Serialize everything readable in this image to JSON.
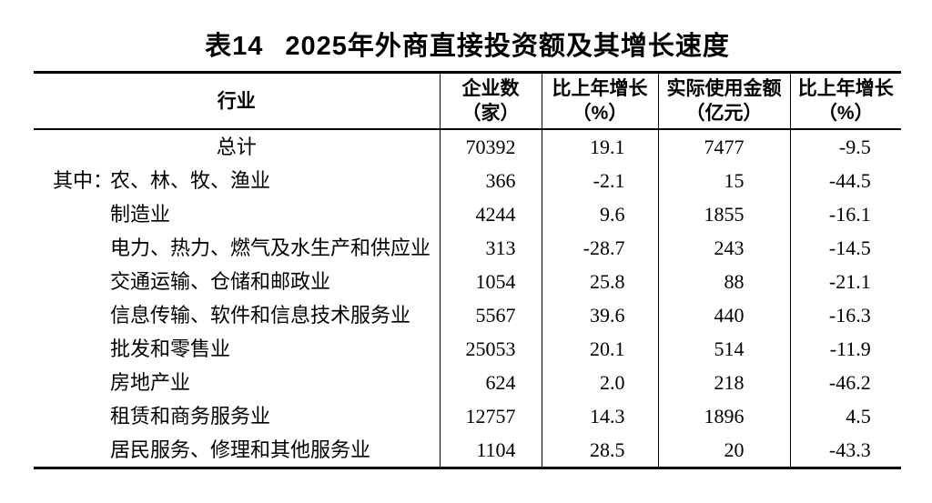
{
  "table": {
    "number": "表14",
    "title": "2025年外商直接投资额及其增长速度",
    "columns": [
      {
        "label": "行业",
        "sub": ""
      },
      {
        "label": "企业数",
        "sub": "（家）"
      },
      {
        "label": "比上年增长",
        "sub": "（%）"
      },
      {
        "label": "实际使用金额",
        "sub": "（亿元）"
      },
      {
        "label": "比上年增长",
        "sub": "（%）"
      }
    ],
    "rows": [
      {
        "prefix": "",
        "industry": "总计",
        "center": true,
        "enterprises": "70392",
        "enterprises_growth": "19.1",
        "amount": "7477",
        "amount_growth": "-9.5"
      },
      {
        "prefix": "其中：",
        "industry": "农、林、牧、渔业",
        "enterprises": "366",
        "enterprises_growth": "-2.1",
        "amount": "15",
        "amount_growth": "-44.5"
      },
      {
        "prefix": "",
        "industry": "制造业",
        "enterprises": "4244",
        "enterprises_growth": "9.6",
        "amount": "1855",
        "amount_growth": "-16.1"
      },
      {
        "prefix": "",
        "industry": "电力、热力、燃气及水生产和供应业",
        "enterprises": "313",
        "enterprises_growth": "-28.7",
        "amount": "243",
        "amount_growth": "-14.5"
      },
      {
        "prefix": "",
        "industry": "交通运输、仓储和邮政业",
        "enterprises": "1054",
        "enterprises_growth": "25.8",
        "amount": "88",
        "amount_growth": "-21.1"
      },
      {
        "prefix": "",
        "industry": "信息传输、软件和信息技术服务业",
        "enterprises": "5567",
        "enterprises_growth": "39.6",
        "amount": "440",
        "amount_growth": "-16.3"
      },
      {
        "prefix": "",
        "industry": "批发和零售业",
        "enterprises": "25053",
        "enterprises_growth": "20.1",
        "amount": "514",
        "amount_growth": "-11.9"
      },
      {
        "prefix": "",
        "industry": "房地产业",
        "enterprises": "624",
        "enterprises_growth": "2.0",
        "amount": "218",
        "amount_growth": "-46.2"
      },
      {
        "prefix": "",
        "industry": "租赁和商务服务业",
        "enterprises": "12757",
        "enterprises_growth": "14.3",
        "amount": "1896",
        "amount_growth": "4.5"
      },
      {
        "prefix": "",
        "industry": "居民服务、修理和其他服务业",
        "enterprises": "1104",
        "enterprises_growth": "28.5",
        "amount": "20",
        "amount_growth": "-43.3"
      }
    ]
  }
}
